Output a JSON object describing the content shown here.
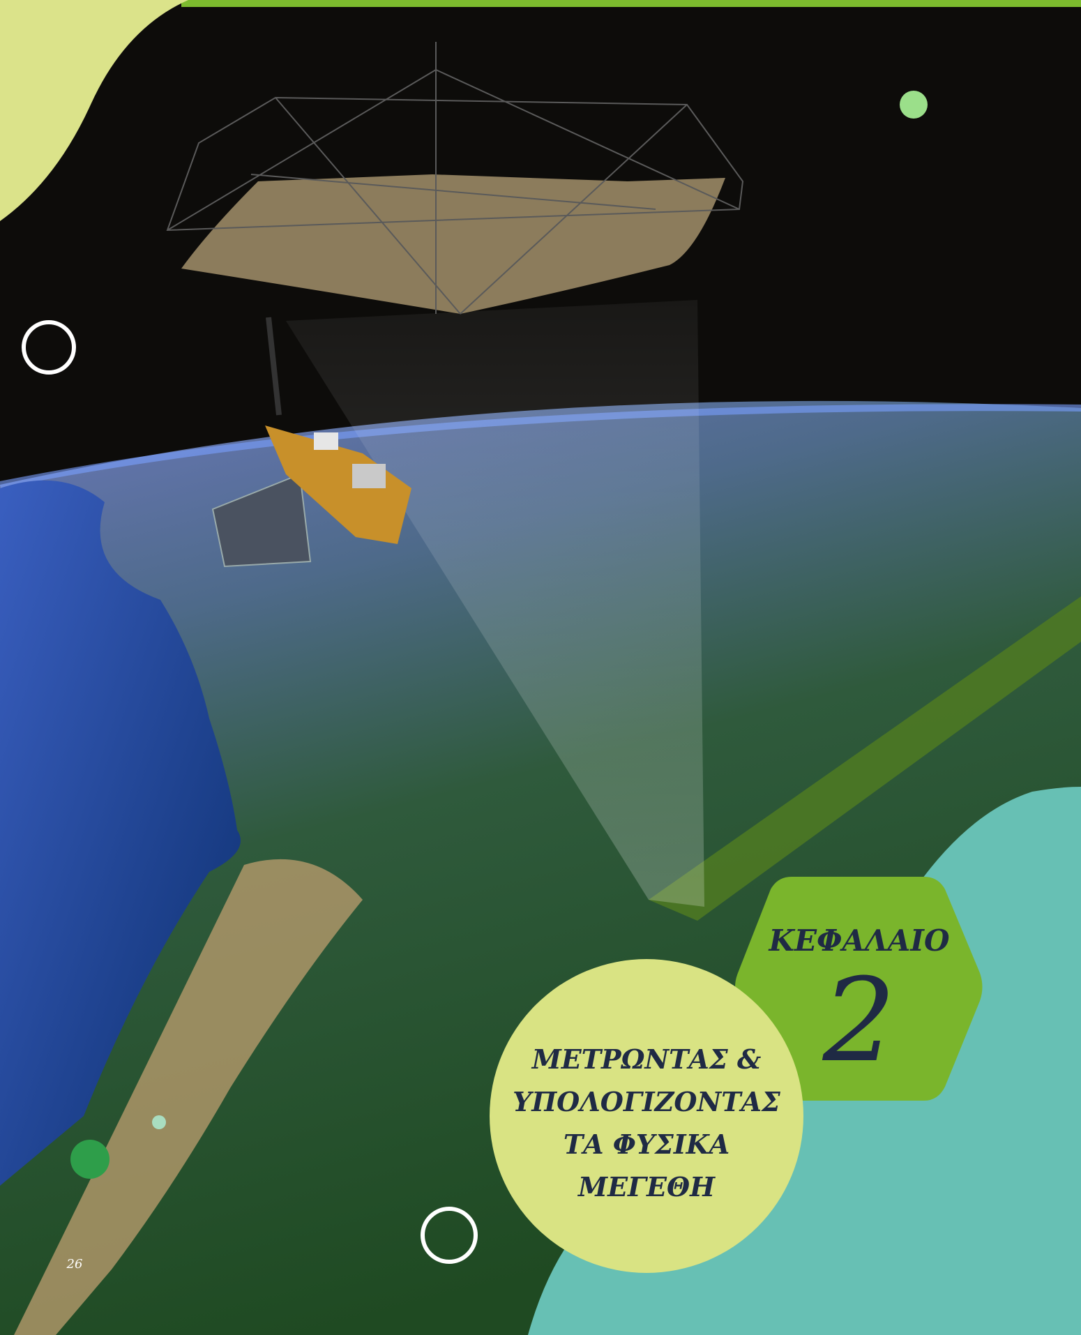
{
  "chapter": {
    "label": "ΚΕΦΑΛΑΙΟ",
    "number": "2"
  },
  "title_lines": [
    "ΜΕΤΡΩΝΤΑΣ &",
    "ΥΠΟΛΟΓΙΖΟΝΤΑΣ",
    "ΤΑ ΦΥΣΙΚΑ",
    "ΜΕΓΕΘΗ"
  ],
  "page_number": "26"
}
